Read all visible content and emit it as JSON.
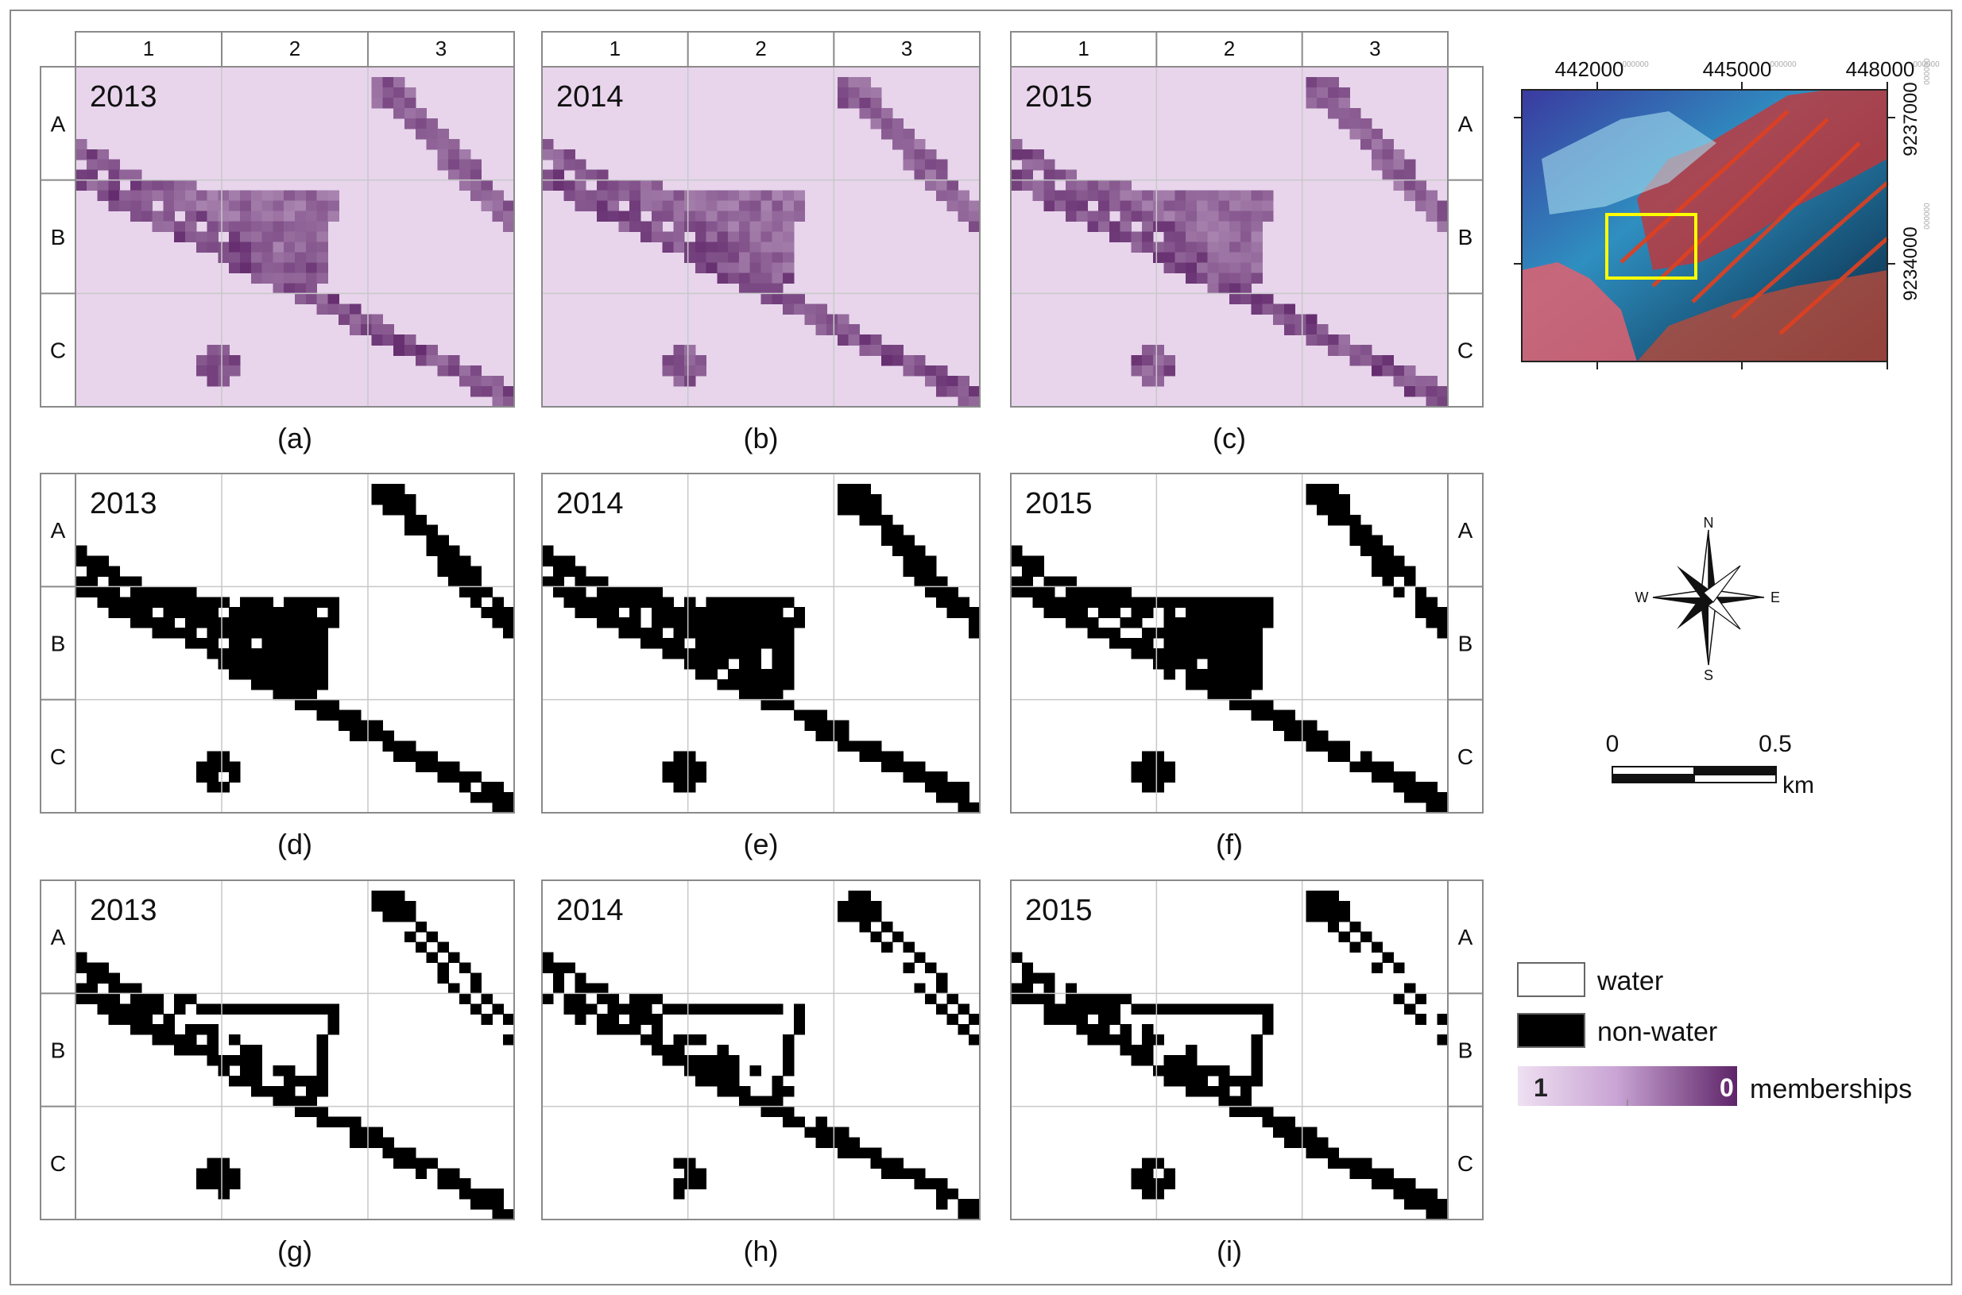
{
  "columns": [
    "1",
    "2",
    "3"
  ],
  "rows": [
    "A",
    "B",
    "C"
  ],
  "panels": [
    {
      "year": "2013",
      "caption": "(a)",
      "kind": "membership"
    },
    {
      "year": "2014",
      "caption": "(b)",
      "kind": "membership"
    },
    {
      "year": "2015",
      "caption": "(c)",
      "kind": "membership"
    },
    {
      "year": "2013",
      "caption": "(d)",
      "kind": "classified"
    },
    {
      "year": "2014",
      "caption": "(e)",
      "kind": "classified"
    },
    {
      "year": "2015",
      "caption": "(f)",
      "kind": "classified"
    },
    {
      "year": "2013",
      "caption": "(g)",
      "kind": "change"
    },
    {
      "year": "2014",
      "caption": "(h)",
      "kind": "change"
    },
    {
      "year": "2015",
      "caption": "(i)",
      "kind": "change"
    }
  ],
  "location_map": {
    "x_ticks": [
      "442000",
      "445000",
      "448000"
    ],
    "x_tick_suffix": "000000",
    "y_ticks": [
      "9237000",
      "9234000"
    ],
    "y_tick_suffix": "000000"
  },
  "north_arrow": {
    "n": "N",
    "s": "S",
    "e": "E",
    "w": "W"
  },
  "scale_bar": {
    "start": "0",
    "end": "0.5",
    "unit": "km"
  },
  "legend": {
    "water_label": "water",
    "nonwater_label": "non-water",
    "membership_high": "1",
    "membership_low": "0",
    "membership_label": "memberships"
  },
  "colors": {
    "membership_high": "#e8d5ec",
    "membership_low": "#5e2468",
    "grid": "#c8c8c8",
    "frame": "#8a8a8a",
    "aoi_box": "#ffff00"
  }
}
